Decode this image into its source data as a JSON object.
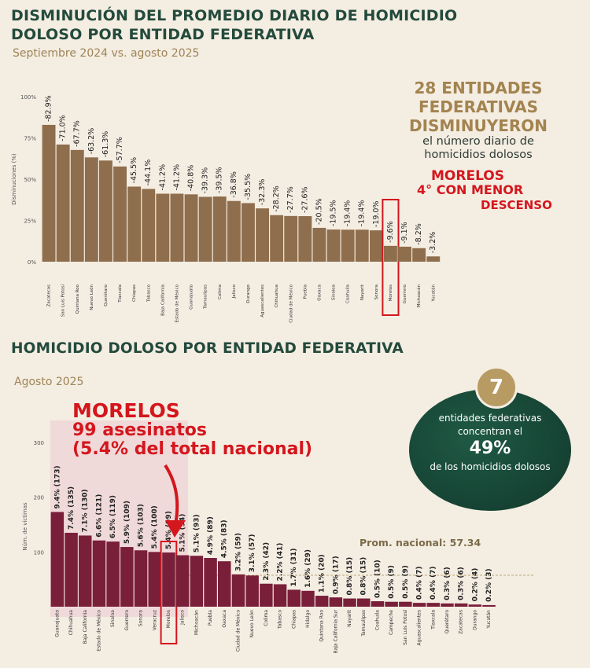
{
  "header1": {
    "title": "DISMINUCIÓN DEL PROMEDIO DIARIO DE HOMICIDIO DOLOSO POR ENTIDAD FEDERATIVA",
    "subtitle": "Septiembre 2024 vs. agosto 2025"
  },
  "stat1": {
    "headline": "28 ENTIDADES FEDERATIVAS DISMINUYERON",
    "body": "el número diario de homicidios dolosos"
  },
  "note1": {
    "line1": "MORELOS",
    "line2": "4° CON MENOR",
    "line3": "DESCENSO"
  },
  "header2": {
    "title": "HOMICIDIO DOLOSO POR ENTIDAD FEDERATIVA",
    "subtitle": "Agosto 2025"
  },
  "note2": {
    "line1": "MORELOS",
    "line2": "99 asesinatos",
    "line3": "(5.4% del total nacional)"
  },
  "stat2": {
    "badge": "7",
    "line1": "entidades federativas",
    "line2": "concentran el",
    "pct": "49%",
    "line3": "de los homicidios dolosos"
  },
  "prom_label": "Prom. nacional: 57.34",
  "colors": {
    "bar1": "#8f6e4d",
    "bar2": "#7a1f3a",
    "highlight": "#d4161d",
    "green": "#234a3c",
    "gold": "#a3834f"
  },
  "chart_data": [
    {
      "type": "bar",
      "ylabel": "Disminuciones (%)",
      "ylim": [
        0,
        100
      ],
      "yticks": [
        "0%",
        "25%",
        "50%",
        "75%",
        "100%"
      ],
      "highlight": "Morelos",
      "categories": [
        "Zacatecas",
        "San Luis Potosí",
        "Quintana Roo",
        "Nuevo León",
        "Querétaro",
        "Tlaxcala",
        "Chiapas",
        "Tabasco",
        "Baja California",
        "Estado de México",
        "Guanajuato",
        "Tamaulipas",
        "Colima",
        "Jalisco",
        "Durango",
        "Aguascalientes",
        "Chihuahua",
        "Ciudad de México",
        "Puebla",
        "Oaxaca",
        "Sinaloa",
        "Coahuila",
        "Nayarit",
        "Sonora",
        "Morelos",
        "Guerrero",
        "Michoacán",
        "Yucatán"
      ],
      "values": [
        82.9,
        71.0,
        67.7,
        63.2,
        61.3,
        57.7,
        45.5,
        44.1,
        41.2,
        41.2,
        40.8,
        39.3,
        39.5,
        36.8,
        35.5,
        32.3,
        28.2,
        27.7,
        27.6,
        20.5,
        19.5,
        19.4,
        19.4,
        19.0,
        9.6,
        9.1,
        8.2,
        3.2
      ],
      "labels": [
        "-82.9%",
        "-71.0%",
        "-67.7%",
        "-63.2%",
        "-61.3%",
        "-57.7%",
        "-45.5%",
        "-44.1%",
        "-41.2%",
        "-41.2%",
        "-40.8%",
        "-39.3%",
        "-39.5%",
        "-36.8%",
        "-35.5%",
        "-32.3%",
        "-28.2%",
        "-27.7%",
        "-27.6%",
        "-20.5%",
        "-19.5%",
        "-19.4%",
        "-19.4%",
        "-19.0%",
        "-9.6%",
        "-9.1%",
        "-8.2%",
        "-3.2%"
      ]
    },
    {
      "type": "bar",
      "ylabel": "Núm. de víctimas",
      "ylim": [
        0,
        320
      ],
      "yticks": [
        "100",
        "200",
        "300"
      ],
      "reference_line": 57.34,
      "highlight": "Morelos",
      "categories": [
        "Guanajuato",
        "Chihuahua",
        "Baja California",
        "Estado de México",
        "Sinaloa",
        "Guerrero",
        "Sonora",
        "Veracruz",
        "Morelos",
        "Jalisco",
        "Michoacán",
        "Puebla",
        "Oaxaca",
        "Ciudad de México",
        "Nuevo León",
        "Colima",
        "Tabasco",
        "Chiapas",
        "Hidalgo",
        "Quintana Roo",
        "Baja California Sur",
        "Nayarit",
        "Tamaulipas",
        "Coahuila",
        "Campeche",
        "San Luis Potosí",
        "Aguascalientes",
        "Tlaxcala",
        "Querétaro",
        "Zacatecas",
        "Durango",
        "Yucatán"
      ],
      "values": [
        173,
        135,
        130,
        121,
        119,
        109,
        103,
        100,
        99,
        94,
        93,
        89,
        83,
        59,
        57,
        42,
        41,
        31,
        29,
        20,
        17,
        15,
        15,
        10,
        9,
        9,
        7,
        7,
        6,
        6,
        4,
        3
      ],
      "labels": [
        "9.4% (173)",
        "7.4% (135)",
        "7.1% (130)",
        "6.6% (121)",
        "6.5% (119)",
        "5.9% (109)",
        "5.6% (103)",
        "5.4% (100)",
        "5.4% (99)",
        "5.1% (94)",
        "5.1% (93)",
        "4.9% (89)",
        "4.5% (83)",
        "3.2% (59)",
        "3.1% (57)",
        "2.3% (42)",
        "2.2% (41)",
        "1.7% (31)",
        "1.6% (29)",
        "1.1% (20)",
        "0.9% (17)",
        "0.8% (15)",
        "0.8% (15)",
        "0.5% (10)",
        "0.5% (9)",
        "0.5% (9)",
        "0.4% (7)",
        "0.4% (7)",
        "0.3% (6)",
        "0.3% (6)",
        "0.2% (4)",
        "0.2% (3)"
      ]
    }
  ]
}
